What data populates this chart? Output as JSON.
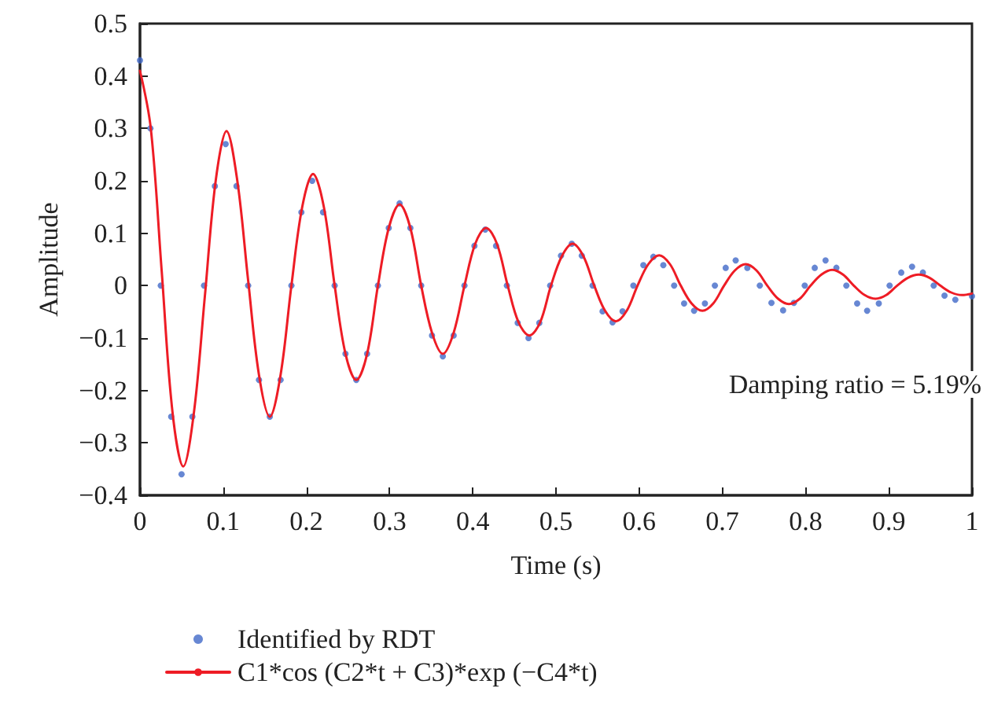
{
  "chart_data": {
    "type": "line",
    "xlabel": "Time (s)",
    "ylabel": "Amplitude",
    "annotations": [
      "Damping ratio = 5.19%"
    ],
    "xlim": [
      0,
      1
    ],
    "xticks": [
      0,
      0.1,
      0.2,
      0.3,
      0.4,
      0.5,
      0.6,
      0.7,
      0.8,
      0.9,
      1
    ],
    "ylim": [
      -0.4,
      0.5
    ],
    "yticks": [
      -0.4,
      -0.3,
      -0.2,
      -0.1,
      0,
      0.1,
      0.2,
      0.3,
      0.4,
      0.5
    ],
    "grid": false,
    "legend": "bottom",
    "series": [
      {
        "name": "Identified by RDT",
        "type": "scatter",
        "marker": "circle",
        "color": "#4169c8",
        "x": [
          0,
          0.0125,
          0.025,
          0.0375,
          0.05,
          0.063,
          0.077,
          0.09,
          0.103,
          0.116,
          0.13,
          0.143,
          0.156,
          0.169,
          0.182,
          0.194,
          0.207,
          0.22,
          0.234,
          0.247,
          0.26,
          0.273,
          0.286,
          0.299,
          0.312,
          0.325,
          0.338,
          0.351,
          0.364,
          0.377,
          0.39,
          0.402,
          0.415,
          0.428,
          0.441,
          0.454,
          0.467,
          0.48,
          0.493,
          0.506,
          0.519,
          0.531,
          0.544,
          0.556,
          0.568,
          0.58,
          0.593,
          0.605,
          0.617,
          0.629,
          0.642,
          0.654,
          0.666,
          0.679,
          0.691,
          0.704,
          0.716,
          0.73,
          0.745,
          0.759,
          0.773,
          0.786,
          0.799,
          0.811,
          0.824,
          0.837,
          0.849,
          0.862,
          0.874,
          0.888,
          0.901,
          0.915,
          0.928,
          0.941,
          0.954,
          0.967,
          0.98,
          1.0
        ],
        "values": [
          0.43,
          0.3,
          0.0,
          -0.25,
          -0.36,
          -0.25,
          0.0,
          0.19,
          0.27,
          0.19,
          0.0,
          -0.18,
          -0.25,
          -0.18,
          0.0,
          0.14,
          0.2,
          0.14,
          0.0,
          -0.13,
          -0.18,
          -0.13,
          0.0,
          0.11,
          0.157,
          0.11,
          0.0,
          -0.095,
          -0.135,
          -0.095,
          0.0,
          0.076,
          0.107,
          0.076,
          0.0,
          -0.071,
          -0.1,
          -0.071,
          0.0,
          0.057,
          0.08,
          0.057,
          0.0,
          -0.049,
          -0.07,
          -0.049,
          0.0,
          0.039,
          0.055,
          0.039,
          0.0,
          -0.034,
          -0.048,
          -0.034,
          0.0,
          0.034,
          0.048,
          0.034,
          0.0,
          -0.033,
          -0.047,
          -0.033,
          0.0,
          0.034,
          0.048,
          0.034,
          0.0,
          -0.034,
          -0.048,
          -0.034,
          0.0,
          0.025,
          0.036,
          0.025,
          0.0,
          -0.019,
          -0.027,
          -0.02
        ]
      },
      {
        "name": "C1*cos (C2*t + C3)*exp (−C4*t)",
        "marker": "none",
        "line_style": "solid",
        "color": "#ee1c25",
        "x": [
          0,
          0.013,
          0.026,
          0.039,
          0.052,
          0.065,
          0.078,
          0.091,
          0.104,
          0.117,
          0.13,
          0.143,
          0.156,
          0.169,
          0.182,
          0.195,
          0.208,
          0.221,
          0.234,
          0.247,
          0.26,
          0.273,
          0.286,
          0.299,
          0.312,
          0.325,
          0.338,
          0.351,
          0.364,
          0.377,
          0.39,
          0.403,
          0.416,
          0.429,
          0.442,
          0.455,
          0.468,
          0.481,
          0.494,
          0.507,
          0.52,
          0.533,
          0.546,
          0.559,
          0.572,
          0.585,
          0.598,
          0.611,
          0.624,
          0.637,
          0.65,
          0.663,
          0.676,
          0.689,
          0.702,
          0.715,
          0.728,
          0.741,
          0.754,
          0.767,
          0.78,
          0.793,
          0.806,
          0.819,
          0.832,
          0.845,
          0.858,
          0.871,
          0.884,
          0.897,
          0.91,
          0.923,
          0.936,
          0.949,
          0.962,
          0.975,
          0.988,
          1.0
        ],
        "values": [
          0.41,
          0.3,
          0.03,
          -0.24,
          -0.345,
          -0.24,
          -0.02,
          0.2,
          0.295,
          0.2,
          0.01,
          -0.17,
          -0.25,
          -0.17,
          0.0,
          0.15,
          0.213,
          0.15,
          0.0,
          -0.13,
          -0.18,
          -0.13,
          0.0,
          0.11,
          0.155,
          0.11,
          0.0,
          -0.09,
          -0.13,
          -0.09,
          0.0,
          0.08,
          0.11,
          0.08,
          0.0,
          -0.07,
          -0.095,
          -0.07,
          0.0,
          0.056,
          0.08,
          0.056,
          0.0,
          -0.048,
          -0.068,
          -0.048,
          0.0,
          0.041,
          0.058,
          0.041,
          0.0,
          -0.034,
          -0.048,
          -0.034,
          0.0,
          0.029,
          0.041,
          0.029,
          0.0,
          -0.025,
          -0.035,
          -0.025,
          0.0,
          0.021,
          0.03,
          0.021,
          0.0,
          -0.018,
          -0.025,
          -0.018,
          0.0,
          0.015,
          0.021,
          0.015,
          0.0,
          -0.013,
          -0.018,
          -0.015
        ]
      }
    ]
  }
}
